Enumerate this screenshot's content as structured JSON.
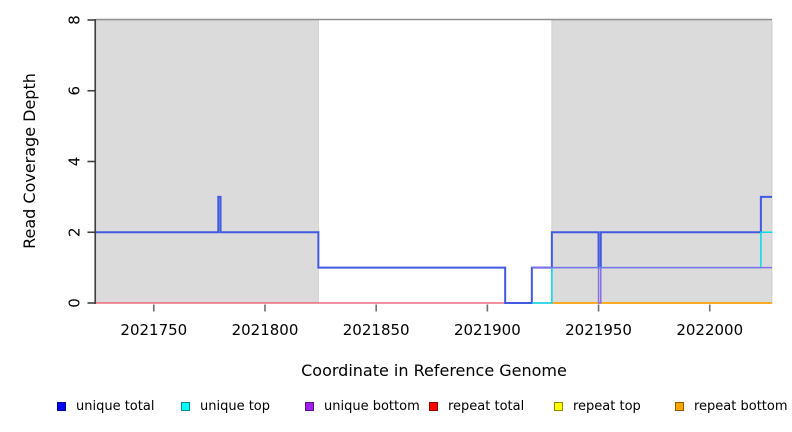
{
  "figure": {
    "xlabel": "Coordinate in Reference Genome",
    "ylabel": "Read Coverage Depth"
  },
  "chart_data": {
    "type": "line",
    "subtype": "step-coverage",
    "title": "",
    "xlabel": "Coordinate in Reference Genome",
    "ylabel": "Read Coverage Depth",
    "xlim": [
      2021724,
      2022028
    ],
    "ylim": [
      0,
      8
    ],
    "x_ticks": [
      2021750,
      2021800,
      2021850,
      2021900,
      2021950,
      2022000
    ],
    "y_ticks": [
      0,
      2,
      4,
      6,
      8
    ],
    "grid": false,
    "legend_position": "bottom",
    "shaded_regions": [
      {
        "name": "shaded-block-left",
        "from": 2021724,
        "to": 2021824,
        "color": "#dbdbdb"
      },
      {
        "name": "shaded-block-right",
        "from": 2021929,
        "to": 2022028,
        "color": "#dbdbdb"
      }
    ],
    "series": [
      {
        "name": "repeat total",
        "legend_color": "#FF0000",
        "line_color": "#E95067",
        "width": 1.3,
        "steps": [
          [
            2021724,
            0
          ]
        ],
        "end": 2022028
      },
      {
        "name": "repeat top",
        "legend_color": "#FFFF00",
        "line_color": "#FFE800",
        "width": 1.3,
        "steps": [
          [
            2021929,
            0
          ]
        ],
        "end": 2022028
      },
      {
        "name": "repeat bottom",
        "legend_color": "#FFA500",
        "line_color": "#FFA516",
        "width": 1.8,
        "steps": [
          [
            2021929,
            0
          ]
        ],
        "end": 2022028
      },
      {
        "name": "unique total",
        "legend_color": "#0000FF",
        "line_color": "#4259E2",
        "width": 2,
        "steps": [
          [
            2021724,
            2
          ],
          [
            2021779,
            3
          ],
          [
            2021780,
            2
          ],
          [
            2021824,
            1
          ],
          [
            2021908,
            0
          ],
          [
            2021920,
            1
          ],
          [
            2021929,
            2
          ],
          [
            2021950,
            1
          ],
          [
            2021951,
            2
          ],
          [
            2022023,
            3
          ]
        ],
        "end": 2022028
      },
      {
        "name": "unique top",
        "legend_color": "#00FFFF",
        "line_color": "#00D9E8",
        "width": 1.5,
        "steps": [
          [
            2021920,
            0
          ],
          [
            2021929,
            1
          ],
          [
            2022023,
            2
          ]
        ],
        "end": 2022028
      },
      {
        "name": "unique bottom",
        "legend_color": "#A020F0",
        "line_color": "#8570EA",
        "width": 1.5,
        "steps": [
          [
            2021920,
            1
          ],
          [
            2021950,
            0
          ],
          [
            2021951,
            1
          ]
        ],
        "end": 2022028
      }
    ],
    "legend": [
      {
        "label": "unique total",
        "color": "#0000FF"
      },
      {
        "label": "unique top",
        "color": "#00FFFF"
      },
      {
        "label": "unique bottom",
        "color": "#A020F0"
      },
      {
        "label": "repeat total",
        "color": "#FF0000"
      },
      {
        "label": "repeat top",
        "color": "#FFFF00"
      },
      {
        "label": "repeat bottom",
        "color": "#FFA500"
      }
    ]
  }
}
